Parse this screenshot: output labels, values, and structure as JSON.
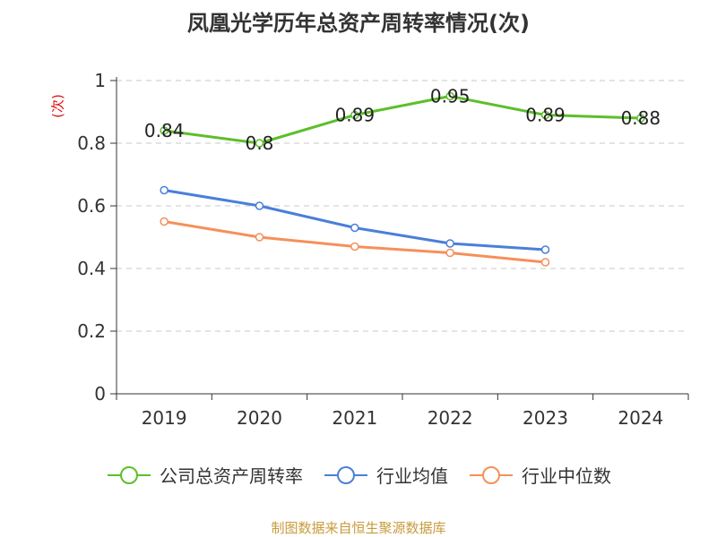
{
  "chart_data": {
    "type": "line",
    "title": "凤凰光学历年总资产周转率情况(次)",
    "ylabel": "(次)",
    "xlabel": "",
    "categories": [
      "2019",
      "2020",
      "2021",
      "2022",
      "2023",
      "2024"
    ],
    "ylim": [
      0,
      1
    ],
    "yticks": [
      0,
      0.2,
      0.4,
      0.6,
      0.8,
      1
    ],
    "ytick_labels": [
      "0",
      "0.2",
      "0.4",
      "0.6",
      "0.8",
      "1"
    ],
    "grid": true,
    "legend_position": "bottom",
    "series": [
      {
        "name": "公司总资产周转率",
        "color": "#5cbf2a",
        "values": [
          0.84,
          0.8,
          0.89,
          0.95,
          0.89,
          0.88
        ],
        "labels": [
          "0.84",
          "0.8",
          "0.89",
          "0.95",
          "0.89",
          "0.88"
        ]
      },
      {
        "name": "行业均值",
        "color": "#4a7fd8",
        "values": [
          0.65,
          0.6,
          0.53,
          0.48,
          0.46,
          null
        ]
      },
      {
        "name": "行业中位数",
        "color": "#f5905a",
        "values": [
          0.55,
          0.5,
          0.47,
          0.45,
          0.42,
          null
        ]
      }
    ]
  },
  "source": "制图数据来自恒生聚源数据库"
}
